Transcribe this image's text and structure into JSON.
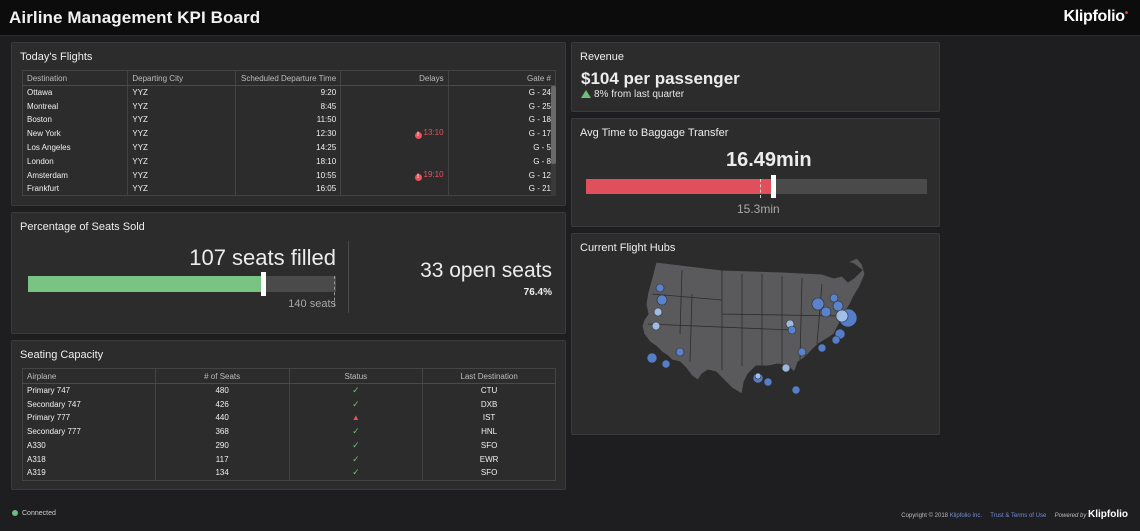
{
  "header": {
    "title": "Airline Management KPI Board",
    "brand": "Klipfolio",
    "brand_mark": "•"
  },
  "flights": {
    "title": "Today's Flights",
    "columns": [
      "Destination",
      "Departing City",
      "Scheduled Departure Time",
      "Delays",
      "Gate #"
    ],
    "rows": [
      {
        "dest": "Ottawa",
        "city": "YYZ",
        "time": "9:20",
        "delay": "",
        "gate": "G - 24"
      },
      {
        "dest": "Montreal",
        "city": "YYZ",
        "time": "8:45",
        "delay": "",
        "gate": "G - 25"
      },
      {
        "dest": "Boston",
        "city": "YYZ",
        "time": "11:50",
        "delay": "",
        "gate": "G - 18"
      },
      {
        "dest": "New York",
        "city": "YYZ",
        "time": "12:30",
        "delay": "13:10",
        "gate": "G - 17"
      },
      {
        "dest": "Los Angeles",
        "city": "YYZ",
        "time": "14:25",
        "delay": "",
        "gate": "G - 5"
      },
      {
        "dest": "London",
        "city": "YYZ",
        "time": "18:10",
        "delay": "",
        "gate": "G - 8"
      },
      {
        "dest": "Amsterdam",
        "city": "YYZ",
        "time": "10:55",
        "delay": "19:10",
        "gate": "G - 12"
      },
      {
        "dest": "Frankfurt",
        "city": "YYZ",
        "time": "16:05",
        "delay": "",
        "gate": "G - 21"
      }
    ]
  },
  "seats": {
    "title": "Percentage of Seats Sold",
    "filled_label": "107 seats filled",
    "filled_value": 107,
    "total_value": 140,
    "total_label": "140 seats",
    "open_label": "33 open seats",
    "percent_label": "76.4%",
    "bar_color": "#7ac483"
  },
  "capacity": {
    "title": "Seating Capacity",
    "columns": [
      "Airplane",
      "# of Seats",
      "Status",
      "Last Destination"
    ],
    "rows": [
      {
        "plane": "Primary 747",
        "seats": "480",
        "status": "ok",
        "dest": "CTU"
      },
      {
        "plane": "Secondary 747",
        "seats": "426",
        "status": "ok",
        "dest": "DXB"
      },
      {
        "plane": "Primary 777",
        "seats": "440",
        "status": "warn",
        "dest": "IST"
      },
      {
        "plane": "Secondary 777",
        "seats": "368",
        "status": "ok",
        "dest": "HNL"
      },
      {
        "plane": "A330",
        "seats": "290",
        "status": "ok",
        "dest": "SFO"
      },
      {
        "plane": "A318",
        "seats": "117",
        "status": "ok",
        "dest": "EWR"
      },
      {
        "plane": "A319",
        "seats": "134",
        "status": "ok",
        "dest": "SFO"
      }
    ],
    "ok_color": "#6cc07a",
    "warn_color": "#e8545a"
  },
  "revenue": {
    "title": "Revenue",
    "value": "$104 per passenger",
    "change": "8% from last quarter",
    "up_color": "#6cc07a"
  },
  "baggage": {
    "title": "Avg Time to Baggage Transfer",
    "value_label": "16.49min",
    "value": 16.49,
    "target_label": "15.3min",
    "target": 15.3,
    "max": 30,
    "bar_color": "#e0505c"
  },
  "hubs": {
    "title": "Current Flight Hubs",
    "hub_color": "#5b86d8",
    "hub_highlight": "#a9c7f0"
  },
  "footer": {
    "connected": "Connected",
    "copyright": "Copyright © 2018",
    "company": "Klipfolio Inc.",
    "terms": "Trust & Terms of Use",
    "powered": "Powered by",
    "brand": "Klipfolio"
  }
}
